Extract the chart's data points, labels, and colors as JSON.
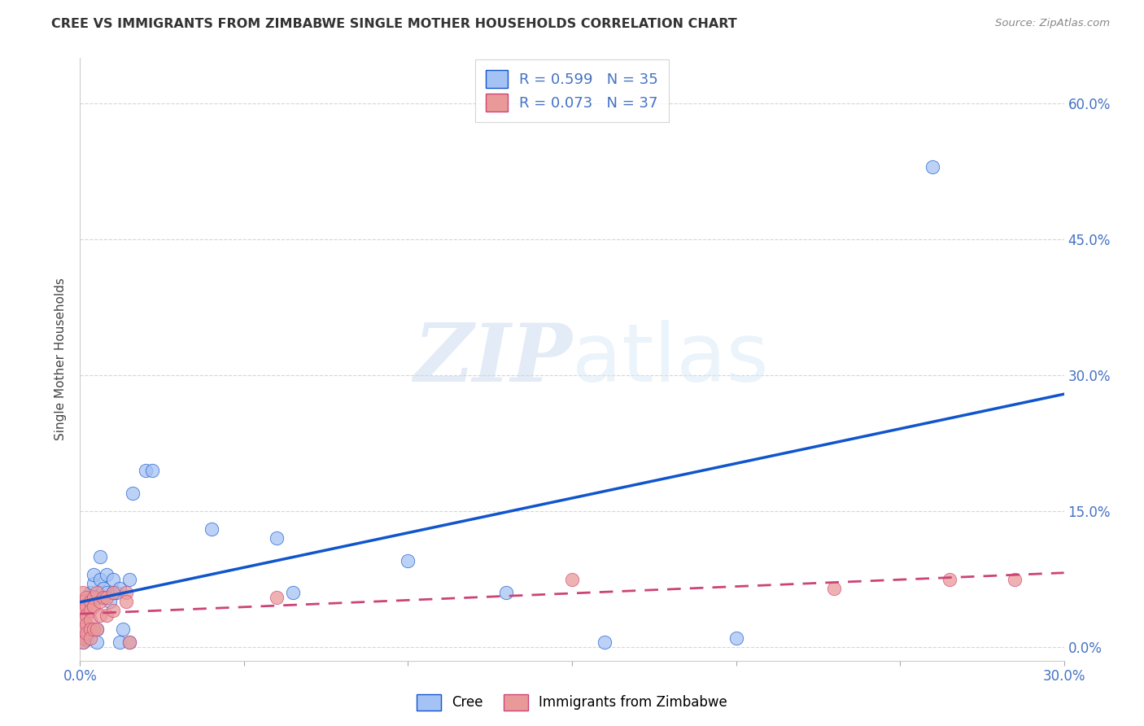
{
  "title": "CREE VS IMMIGRANTS FROM ZIMBABWE SINGLE MOTHER HOUSEHOLDS CORRELATION CHART",
  "source": "Source: ZipAtlas.com",
  "ylabel": "Single Mother Households",
  "xlim": [
    0.0,
    0.3
  ],
  "ylim": [
    -0.015,
    0.65
  ],
  "yticks": [
    0.0,
    0.15,
    0.3,
    0.45,
    0.6
  ],
  "ytick_labels": [
    "0.0%",
    "15.0%",
    "30.0%",
    "45.0%",
    "60.0%"
  ],
  "xticks": [
    0.0,
    0.05,
    0.1,
    0.15,
    0.2,
    0.25,
    0.3
  ],
  "xtick_labels": [
    "0.0%",
    "",
    "",
    "",
    "",
    "",
    "30.0%"
  ],
  "cree_R": 0.599,
  "cree_N": 35,
  "zimb_R": 0.073,
  "zimb_N": 37,
  "cree_color": "#a4c2f4",
  "zimb_color": "#ea9999",
  "trendline_cree_color": "#1155cc",
  "trendline_zimb_color": "#cc4477",
  "tick_color": "#4472c4",
  "background_color": "#ffffff",
  "watermark_zip": "ZIP",
  "watermark_atlas": "atlas",
  "legend_border_color": "#cccccc",
  "cree_points": [
    [
      0.001,
      0.005
    ],
    [
      0.001,
      0.01
    ],
    [
      0.002,
      0.008
    ],
    [
      0.002,
      0.012
    ],
    [
      0.003,
      0.06
    ],
    [
      0.004,
      0.07
    ],
    [
      0.004,
      0.08
    ],
    [
      0.005,
      0.005
    ],
    [
      0.005,
      0.02
    ],
    [
      0.005,
      0.055
    ],
    [
      0.006,
      0.075
    ],
    [
      0.006,
      0.1
    ],
    [
      0.007,
      0.065
    ],
    [
      0.008,
      0.08
    ],
    [
      0.008,
      0.06
    ],
    [
      0.009,
      0.05
    ],
    [
      0.01,
      0.06
    ],
    [
      0.01,
      0.075
    ],
    [
      0.011,
      0.06
    ],
    [
      0.012,
      0.005
    ],
    [
      0.012,
      0.065
    ],
    [
      0.013,
      0.02
    ],
    [
      0.015,
      0.005
    ],
    [
      0.015,
      0.075
    ],
    [
      0.016,
      0.17
    ],
    [
      0.02,
      0.195
    ],
    [
      0.022,
      0.195
    ],
    [
      0.04,
      0.13
    ],
    [
      0.06,
      0.12
    ],
    [
      0.065,
      0.06
    ],
    [
      0.1,
      0.095
    ],
    [
      0.13,
      0.06
    ],
    [
      0.16,
      0.005
    ],
    [
      0.2,
      0.01
    ],
    [
      0.26,
      0.53
    ]
  ],
  "zimb_points": [
    [
      0.001,
      0.06
    ],
    [
      0.001,
      0.05
    ],
    [
      0.001,
      0.04
    ],
    [
      0.001,
      0.03
    ],
    [
      0.001,
      0.02
    ],
    [
      0.001,
      0.01
    ],
    [
      0.001,
      0.005
    ],
    [
      0.002,
      0.055
    ],
    [
      0.002,
      0.045
    ],
    [
      0.002,
      0.035
    ],
    [
      0.002,
      0.025
    ],
    [
      0.002,
      0.015
    ],
    [
      0.003,
      0.05
    ],
    [
      0.003,
      0.04
    ],
    [
      0.003,
      0.03
    ],
    [
      0.003,
      0.02
    ],
    [
      0.003,
      0.01
    ],
    [
      0.004,
      0.055
    ],
    [
      0.004,
      0.045
    ],
    [
      0.004,
      0.02
    ],
    [
      0.005,
      0.06
    ],
    [
      0.005,
      0.02
    ],
    [
      0.006,
      0.05
    ],
    [
      0.006,
      0.035
    ],
    [
      0.007,
      0.055
    ],
    [
      0.008,
      0.055
    ],
    [
      0.008,
      0.035
    ],
    [
      0.01,
      0.06
    ],
    [
      0.01,
      0.04
    ],
    [
      0.014,
      0.06
    ],
    [
      0.014,
      0.05
    ],
    [
      0.015,
      0.005
    ],
    [
      0.06,
      0.055
    ],
    [
      0.15,
      0.075
    ],
    [
      0.23,
      0.065
    ],
    [
      0.265,
      0.075
    ],
    [
      0.285,
      0.075
    ]
  ]
}
